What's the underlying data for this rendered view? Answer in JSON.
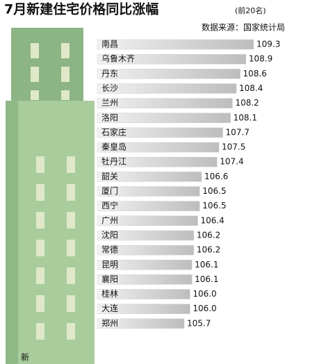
{
  "chart_data": {
    "type": "bar",
    "orientation": "horizontal",
    "title": "7月新建住宅价格同比涨幅",
    "subtitle": "(前20名)",
    "source": "数据来源：国家统计局",
    "building_text": "新",
    "categories": [
      "南昌",
      "乌鲁木齐",
      "丹东",
      "长沙",
      "兰州",
      "洛阳",
      "石家庄",
      "秦皇岛",
      "牡丹江",
      "韶关",
      "厦门",
      "西宁",
      "广州",
      "沈阳",
      "常德",
      "昆明",
      "襄阳",
      "桂林",
      "大连",
      "郑州"
    ],
    "values": [
      109.3,
      108.9,
      108.6,
      108.4,
      108.2,
      108.1,
      107.7,
      107.5,
      107.4,
      106.6,
      106.5,
      106.5,
      106.4,
      106.2,
      106.2,
      106.1,
      106.1,
      106.0,
      106.0,
      105.7
    ],
    "value_labels": [
      "109.3",
      "108.9",
      "108.6",
      "108.4",
      "108.2",
      "108.1",
      "107.7",
      "107.5",
      "107.4",
      "106.6",
      "106.5",
      "106.5",
      "106.4",
      "106.2",
      "106.2",
      "106.1",
      "106.1",
      "106.0",
      "106.0",
      "105.7"
    ],
    "color": "#cfcfcf"
  }
}
